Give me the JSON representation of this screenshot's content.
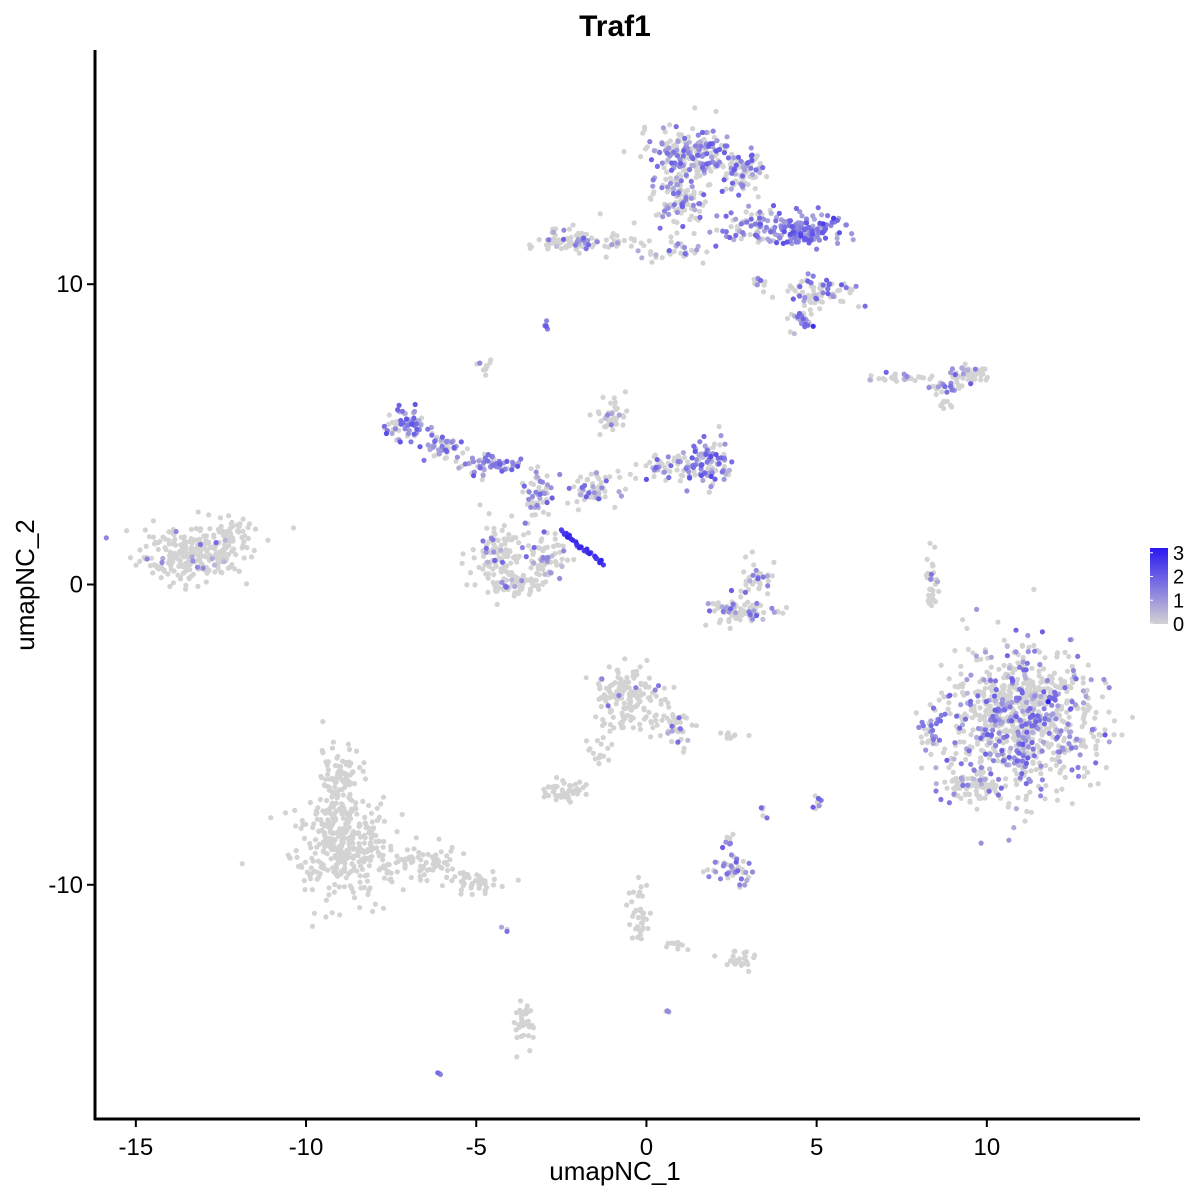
{
  "chart_data": {
    "type": "scatter",
    "title": "Traf1",
    "xlabel": "umapNC_1",
    "ylabel": "umapNC_2",
    "xlim": [
      -16.2,
      14.5
    ],
    "ylim": [
      -17.8,
      17.8
    ],
    "x_ticks": [
      -15,
      -10,
      -5,
      0,
      5,
      10
    ],
    "x_tick_labels": [
      "-15",
      "-10",
      "-5",
      "0",
      "5",
      "10"
    ],
    "y_ticks": [
      -10,
      0,
      10
    ],
    "y_tick_labels": [
      "-10",
      "0",
      "10"
    ],
    "grid": false,
    "color_scale": {
      "low": "#d3d3d3",
      "high": "#2a18f0",
      "min": 0,
      "max": 3.2,
      "legend_values": [
        3,
        2,
        1,
        0
      ],
      "legend_labels": [
        "3",
        "2",
        "1",
        "0"
      ],
      "legend_position": "right"
    },
    "clusters": [
      {
        "cx": -13.3,
        "cy": 1.0,
        "rx": 1.4,
        "ry": 0.8,
        "n": 260,
        "expr": 0.03
      },
      {
        "cx": -12.2,
        "cy": 1.6,
        "rx": 0.6,
        "ry": 0.6,
        "n": 40,
        "expr": 0.02
      },
      {
        "cx": -9.0,
        "cy": -8.6,
        "rx": 1.3,
        "ry": 1.5,
        "n": 360,
        "expr": 0.0
      },
      {
        "cx": -9.0,
        "cy": -6.5,
        "rx": 0.6,
        "ry": 1.0,
        "n": 90,
        "expr": 0.0
      },
      {
        "cx": -6.8,
        "cy": -9.3,
        "rx": 1.2,
        "ry": 0.6,
        "n": 80,
        "expr": 0.0
      },
      {
        "cx": -5.0,
        "cy": -9.9,
        "rx": 0.9,
        "ry": 0.35,
        "n": 45,
        "expr": 0.0
      },
      {
        "cx": -3.6,
        "cy": -14.6,
        "rx": 0.3,
        "ry": 0.7,
        "n": 40,
        "expr": 0.0
      },
      {
        "cx": -6.1,
        "cy": -16.3,
        "rx": 0.1,
        "ry": 0.05,
        "n": 3,
        "expr": 0.6
      },
      {
        "cx": -4.3,
        "cy": -11.5,
        "rx": 0.2,
        "ry": 0.1,
        "n": 3,
        "expr": 0.5
      },
      {
        "cx": -4.4,
        "cy": 1.0,
        "rx": 0.7,
        "ry": 0.9,
        "n": 100,
        "expr": 0.08
      },
      {
        "cx": -3.0,
        "cy": 0.8,
        "rx": 0.6,
        "ry": 0.9,
        "n": 80,
        "expr": 0.2
      },
      {
        "cx": -3.8,
        "cy": 0.0,
        "rx": 0.9,
        "ry": 0.4,
        "n": 60,
        "expr": 0.15
      },
      {
        "cx": -7.0,
        "cy": 5.3,
        "rx": 0.6,
        "ry": 0.5,
        "n": 70,
        "expr": 0.6
      },
      {
        "cx": -6.0,
        "cy": 4.6,
        "rx": 0.6,
        "ry": 0.35,
        "n": 45,
        "expr": 0.5
      },
      {
        "cx": -4.6,
        "cy": 4.0,
        "rx": 0.9,
        "ry": 0.35,
        "n": 60,
        "expr": 0.55
      },
      {
        "cx": -3.2,
        "cy": 3.0,
        "rx": 0.5,
        "ry": 1.0,
        "n": 50,
        "expr": 0.35
      },
      {
        "cx": -1.5,
        "cy": 3.2,
        "rx": 0.9,
        "ry": 0.6,
        "n": 60,
        "expr": 0.25
      },
      {
        "cx": -1.0,
        "cy": 5.6,
        "rx": 0.5,
        "ry": 0.6,
        "n": 40,
        "expr": 0.05
      },
      {
        "cx": 0.6,
        "cy": 4.0,
        "rx": 0.7,
        "ry": 0.45,
        "n": 40,
        "expr": 0.3
      },
      {
        "cx": 1.8,
        "cy": 4.0,
        "rx": 0.7,
        "ry": 0.6,
        "n": 100,
        "expr": 0.55
      },
      {
        "cx": -4.7,
        "cy": 7.3,
        "rx": 0.2,
        "ry": 0.2,
        "n": 10,
        "expr": 0.1
      },
      {
        "cx": -3.0,
        "cy": 8.6,
        "rx": 0.1,
        "ry": 0.1,
        "n": 5,
        "expr": 0.8
      },
      {
        "cx": 1.2,
        "cy": 14.3,
        "rx": 1.1,
        "ry": 0.8,
        "n": 200,
        "expr": 0.4
      },
      {
        "cx": 1.0,
        "cy": 12.8,
        "rx": 0.8,
        "ry": 0.8,
        "n": 100,
        "expr": 0.3
      },
      {
        "cx": 2.8,
        "cy": 13.8,
        "rx": 0.6,
        "ry": 0.7,
        "n": 90,
        "expr": 0.4
      },
      {
        "cx": 4.6,
        "cy": 11.8,
        "rx": 1.0,
        "ry": 0.5,
        "n": 150,
        "expr": 0.8
      },
      {
        "cx": 2.9,
        "cy": 12.0,
        "rx": 0.7,
        "ry": 0.5,
        "n": 60,
        "expr": 0.4
      },
      {
        "cx": 5.0,
        "cy": 9.7,
        "rx": 1.0,
        "ry": 0.5,
        "n": 80,
        "expr": 0.25
      },
      {
        "cx": 4.5,
        "cy": 8.8,
        "rx": 0.4,
        "ry": 0.3,
        "n": 30,
        "expr": 0.55
      },
      {
        "cx": -2.2,
        "cy": 11.4,
        "rx": 0.8,
        "ry": 0.4,
        "n": 80,
        "expr": 0.15
      },
      {
        "cx": -1.0,
        "cy": 11.4,
        "rx": 0.6,
        "ry": 0.2,
        "n": 20,
        "expr": 0.2
      },
      {
        "cx": 0.8,
        "cy": 11.2,
        "rx": 1.0,
        "ry": 0.4,
        "n": 40,
        "expr": 0.25
      },
      {
        "cx": 3.2,
        "cy": 10.1,
        "rx": 0.3,
        "ry": 0.15,
        "n": 10,
        "expr": 0.4
      },
      {
        "cx": 9.5,
        "cy": 7.0,
        "rx": 0.5,
        "ry": 0.25,
        "n": 50,
        "expr": 0.3
      },
      {
        "cx": 7.4,
        "cy": 6.9,
        "rx": 0.7,
        "ry": 0.15,
        "n": 30,
        "expr": 0.1
      },
      {
        "cx": 8.8,
        "cy": 6.6,
        "rx": 0.4,
        "ry": 0.2,
        "n": 25,
        "expr": 0.25
      },
      {
        "cx": 8.8,
        "cy": 6.0,
        "rx": 0.2,
        "ry": 0.2,
        "n": 8,
        "expr": 0.0
      },
      {
        "cx": 2.9,
        "cy": -0.9,
        "rx": 0.9,
        "ry": 0.4,
        "n": 80,
        "expr": 0.15
      },
      {
        "cx": 3.2,
        "cy": 0.2,
        "rx": 0.4,
        "ry": 0.7,
        "n": 35,
        "expr": 0.2
      },
      {
        "cx": 8.4,
        "cy": 0.2,
        "rx": 0.15,
        "ry": 0.9,
        "n": 40,
        "expr": 0.15
      },
      {
        "cx": 11.0,
        "cy": -4.5,
        "rx": 1.9,
        "ry": 2.2,
        "n": 900,
        "expr": 0.25
      },
      {
        "cx": 8.4,
        "cy": -5.1,
        "rx": 0.3,
        "ry": 0.6,
        "n": 30,
        "expr": 0.45
      },
      {
        "cx": 9.5,
        "cy": -6.8,
        "rx": 0.8,
        "ry": 0.4,
        "n": 70,
        "expr": 0.05
      },
      {
        "cx": -0.6,
        "cy": -3.8,
        "rx": 0.9,
        "ry": 1.0,
        "n": 160,
        "expr": 0.06
      },
      {
        "cx": 0.9,
        "cy": -4.7,
        "rx": 0.4,
        "ry": 0.7,
        "n": 40,
        "expr": 0.15
      },
      {
        "cx": -2.4,
        "cy": -6.9,
        "rx": 0.6,
        "ry": 0.3,
        "n": 50,
        "expr": 0.0
      },
      {
        "cx": -1.4,
        "cy": -5.5,
        "rx": 0.3,
        "ry": 0.5,
        "n": 15,
        "expr": 0.0
      },
      {
        "cx": 2.5,
        "cy": -9.5,
        "rx": 0.6,
        "ry": 0.4,
        "n": 45,
        "expr": 0.35
      },
      {
        "cx": 2.4,
        "cy": -8.5,
        "rx": 0.2,
        "ry": 0.2,
        "n": 8,
        "expr": 0.6
      },
      {
        "cx": 2.6,
        "cy": -12.5,
        "rx": 0.5,
        "ry": 0.25,
        "n": 25,
        "expr": 0.0
      },
      {
        "cx": -0.2,
        "cy": -11.0,
        "rx": 0.3,
        "ry": 1.0,
        "n": 35,
        "expr": 0.0
      },
      {
        "cx": 0.7,
        "cy": -12.0,
        "rx": 0.4,
        "ry": 0.15,
        "n": 10,
        "expr": 0.0
      },
      {
        "cx": 5.0,
        "cy": -7.3,
        "rx": 0.15,
        "ry": 0.3,
        "n": 10,
        "expr": 0.3
      },
      {
        "cx": 3.4,
        "cy": -7.6,
        "rx": 0.1,
        "ry": 0.2,
        "n": 5,
        "expr": 0.05
      },
      {
        "cx": 2.5,
        "cy": -5.0,
        "rx": 0.4,
        "ry": 0.15,
        "n": 10,
        "expr": 0.0
      },
      {
        "cx": 0.6,
        "cy": -14.2,
        "rx": 0.1,
        "ry": 0.05,
        "n": 3,
        "expr": 0.6
      }
    ],
    "trajectory": {
      "x0": -2.5,
      "y0": 1.8,
      "x1": -1.3,
      "y1": 0.7,
      "n": 28,
      "expr": 3.0
    },
    "highlights": [
      {
        "x": 11.8,
        "y": -3.9,
        "value": 3.1
      },
      {
        "x": 4.9,
        "y": 8.6,
        "value": 2.8
      },
      {
        "x": 5.5,
        "y": 12.2,
        "value": 2.6
      },
      {
        "x": 0.0,
        "y": 3.5,
        "value": 2.2
      },
      {
        "x": 1.9,
        "y": 3.6,
        "value": 2.4
      },
      {
        "x": -4.1,
        "y": 4.1,
        "value": 2.0
      },
      {
        "x": 2.5,
        "y": -0.2,
        "value": 2.0
      }
    ]
  }
}
